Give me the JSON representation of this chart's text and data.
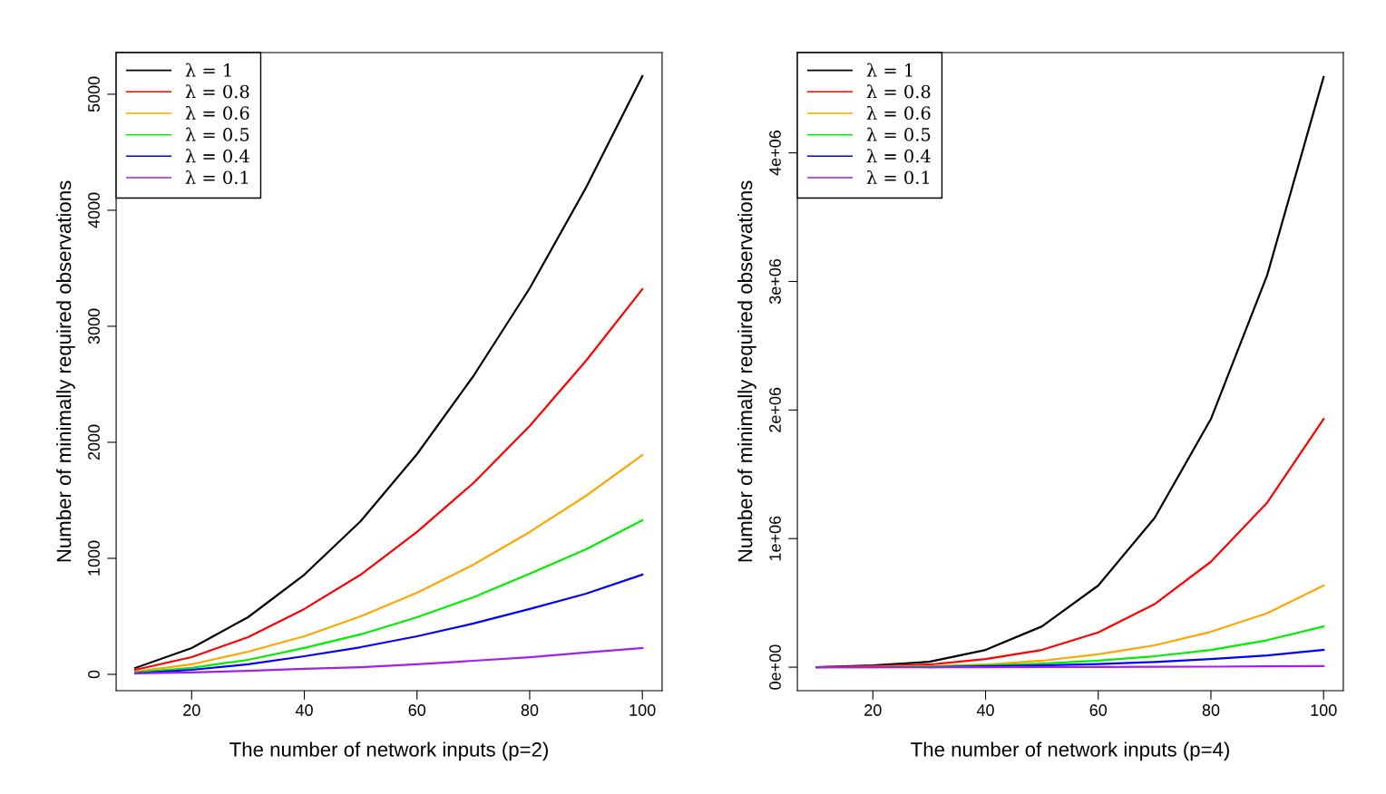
{
  "chart_data": [
    {
      "type": "line",
      "xlabel": "The number of network inputs (p=2)",
      "ylabel": "Number of minimally required observations",
      "x": [
        10,
        20,
        30,
        40,
        50,
        60,
        70,
        80,
        90,
        100
      ],
      "xlim": [
        6.6,
        103.5
      ],
      "xticks": [
        20,
        40,
        60,
        80,
        100
      ],
      "ylim": [
        -141,
        5359
      ],
      "yticks": [
        0,
        1000,
        2000,
        3000,
        4000,
        5000
      ],
      "grid": false,
      "legend": "top left",
      "marker": "none",
      "line_style": "solid",
      "series": [
        {
          "name": "λ = 1",
          "color": "#000000",
          "values": [
            55,
            227,
            492,
            859,
            1320,
            1898,
            2570,
            3328,
            4195,
            5156
          ]
        },
        {
          "name": "λ = 0.8",
          "color": "#ff0000",
          "values": [
            39,
            148,
            320,
            563,
            859,
            1227,
            1648,
            2140,
            2703,
            3320
          ]
        },
        {
          "name": "λ = 0.6",
          "color": "#ffa500",
          "values": [
            23,
            86,
            195,
            328,
            500,
            703,
            945,
            1227,
            1539,
            1890
          ]
        },
        {
          "name": "λ = 0.5",
          "color": "#00ee00",
          "values": [
            16,
            55,
            125,
            227,
            344,
            492,
            664,
            867,
            1078,
            1328
          ]
        },
        {
          "name": "λ = 0.4",
          "color": "#0000ff",
          "values": [
            8,
            39,
            86,
            156,
            234,
            328,
            438,
            563,
            695,
            859
          ]
        },
        {
          "name": "λ = 0.1",
          "color": "#a020f0",
          "values": [
            8,
            16,
            31,
            47,
            62,
            86,
            117,
            148,
            188,
            227
          ]
        }
      ]
    },
    {
      "type": "line",
      "xlabel": "The number of network inputs (p=4)",
      "ylabel": "Number of minimally required observations",
      "x": [
        10,
        20,
        30,
        40,
        50,
        60,
        70,
        80,
        90,
        100
      ],
      "xlim": [
        6.6,
        103.5
      ],
      "xticks": [
        20,
        40,
        60,
        80,
        100
      ],
      "ylim": [
        -183000,
        4780000
      ],
      "yticks": [
        {
          "value": 0,
          "label": "0e+00"
        },
        {
          "value": 1000000,
          "label": "1e+06"
        },
        {
          "value": 2000000,
          "label": "2e+06"
        },
        {
          "value": 3000000,
          "label": "3e+06"
        },
        {
          "value": 4000000,
          "label": "4e+06"
        }
      ],
      "grid": false,
      "legend": "top left",
      "marker": "none",
      "line_style": "solid",
      "series": [
        {
          "name": "λ = 1",
          "color": "#000000",
          "values": [
            0,
            14000,
            42000,
            134000,
            317000,
            635000,
            1160000,
            1930000,
            3050000,
            4590000
          ]
        },
        {
          "name": "λ = 0.8",
          "color": "#ff0000",
          "values": [
            0,
            7000,
            20000,
            63000,
            134000,
            270000,
            490000,
            820000,
            1280000,
            1930000
          ]
        },
        {
          "name": "λ = 0.6",
          "color": "#ffa500",
          "values": [
            0,
            2000,
            7000,
            20000,
            50000,
            100000,
            170000,
            275000,
            420000,
            635000
          ]
        },
        {
          "name": "λ = 0.5",
          "color": "#00ee00",
          "values": [
            0,
            0,
            5000,
            14000,
            28000,
            50000,
            85000,
            134000,
            210000,
            317000
          ]
        },
        {
          "name": "λ = 0.4",
          "color": "#0000ff",
          "values": [
            null,
            null,
            0,
            6000,
            13000,
            24000,
            40000,
            63000,
            92000,
            134000
          ]
        },
        {
          "name": "λ = 0.1",
          "color": "#a020f0",
          "values": [
            0,
            0,
            0,
            0,
            1000,
            2000,
            3000,
            4000,
            6000,
            8000
          ]
        }
      ]
    }
  ]
}
